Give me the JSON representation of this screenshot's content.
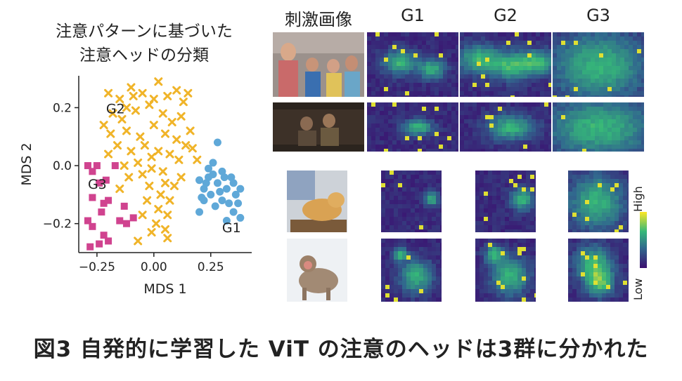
{
  "plot_title_line1": "注意パターンに基づいた",
  "plot_title_line2": "注意ヘッドの分類",
  "column_headers": [
    "刺激画像",
    "G1",
    "G2",
    "G3"
  ],
  "colorbar": {
    "high_label": "High",
    "low_label": "Low"
  },
  "caption": "図3 自発的に学習した ViT の注意のヘッドは3群に分かれた",
  "colors": {
    "G1": "#5fa8d8",
    "G2": "#f0b429",
    "G3": "#d0438f",
    "heat_low": "#3b0f70",
    "heat_high": "#fde725"
  },
  "chart_data": {
    "type": "scatter",
    "xlabel": "MDS 1",
    "ylabel": "MDS 2",
    "xlim": [
      -0.33,
      0.43
    ],
    "ylim": [
      -0.3,
      0.31
    ],
    "xticks": [
      -0.25,
      0.0,
      0.25
    ],
    "yticks": [
      -0.2,
      0.0,
      0.2
    ],
    "xtick_labels": [
      "−0.25",
      "0.00",
      "0.25"
    ],
    "ytick_labels": [
      "−0.2",
      "0.0",
      "0.2"
    ],
    "grid": false,
    "series": [
      {
        "name": "G1",
        "marker": "circle",
        "color": "#5fa8d8",
        "points": [
          [
            0.2,
            -0.05
          ],
          [
            0.22,
            -0.08
          ],
          [
            0.24,
            -0.04
          ],
          [
            0.26,
            -0.03
          ],
          [
            0.28,
            -0.06
          ],
          [
            0.3,
            -0.02
          ],
          [
            0.32,
            -0.08
          ],
          [
            0.34,
            -0.04
          ],
          [
            0.36,
            -0.1
          ],
          [
            0.38,
            -0.08
          ],
          [
            0.3,
            -0.12
          ],
          [
            0.27,
            -0.14
          ],
          [
            0.33,
            -0.13
          ],
          [
            0.35,
            -0.16
          ],
          [
            0.38,
            -0.18
          ],
          [
            0.25,
            -0.1
          ],
          [
            0.22,
            -0.12
          ],
          [
            0.2,
            -0.16
          ],
          [
            0.29,
            -0.09
          ],
          [
            0.31,
            -0.04
          ],
          [
            0.26,
            0.01
          ],
          [
            0.28,
            0.08
          ],
          [
            0.24,
            -0.01
          ],
          [
            0.35,
            -0.06
          ],
          [
            0.37,
            -0.13
          ],
          [
            0.32,
            -0.19
          ],
          [
            0.23,
            -0.06
          ],
          [
            0.21,
            -0.11
          ]
        ]
      },
      {
        "name": "G2",
        "marker": "x",
        "color": "#f0b429",
        "points": [
          [
            -0.2,
            0.25
          ],
          [
            -0.15,
            0.23
          ],
          [
            -0.1,
            0.27
          ],
          [
            -0.05,
            0.25
          ],
          [
            0.02,
            0.29
          ],
          [
            0.06,
            0.24
          ],
          [
            0.1,
            0.26
          ],
          [
            0.13,
            0.22
          ],
          [
            0.15,
            0.25
          ],
          [
            -0.18,
            0.18
          ],
          [
            -0.14,
            0.16
          ],
          [
            -0.08,
            0.19
          ],
          [
            -0.02,
            0.21
          ],
          [
            0.04,
            0.18
          ],
          [
            0.08,
            0.15
          ],
          [
            0.12,
            0.17
          ],
          [
            -0.22,
            0.14
          ],
          [
            -0.19,
            0.11
          ],
          [
            -0.12,
            0.12
          ],
          [
            -0.06,
            0.1
          ],
          [
            0.0,
            0.14
          ],
          [
            0.05,
            0.11
          ],
          [
            0.1,
            0.09
          ],
          [
            0.14,
            0.07
          ],
          [
            -0.16,
            0.07
          ],
          [
            -0.1,
            0.05
          ],
          [
            -0.04,
            0.07
          ],
          [
            0.02,
            0.05
          ],
          [
            0.07,
            0.04
          ],
          [
            0.11,
            0.02
          ],
          [
            0.17,
            0.06
          ],
          [
            0.19,
            0.02
          ],
          [
            -0.13,
            0.0
          ],
          [
            -0.07,
            0.01
          ],
          [
            -0.01,
            -0.01
          ],
          [
            0.04,
            -0.02
          ],
          [
            -0.11,
            -0.04
          ],
          [
            -0.05,
            -0.03
          ],
          [
            -0.02,
            -0.07
          ],
          [
            0.05,
            -0.06
          ],
          [
            0.09,
            -0.07
          ],
          [
            0.03,
            -0.1
          ],
          [
            0.07,
            -0.12
          ],
          [
            -0.03,
            -0.12
          ],
          [
            0.02,
            -0.15
          ],
          [
            0.06,
            -0.17
          ],
          [
            -0.05,
            -0.17
          ],
          [
            0.01,
            -0.2
          ],
          [
            0.05,
            -0.22
          ],
          [
            -0.01,
            -0.23
          ],
          [
            0.06,
            -0.25
          ],
          [
            -0.07,
            -0.26
          ],
          [
            -0.12,
            0.2
          ],
          [
            -0.2,
            0.04
          ],
          [
            0.16,
            0.12
          ],
          [
            -0.09,
            0.24
          ],
          [
            -0.01,
            0.03
          ],
          [
            0.12,
            -0.04
          ],
          [
            -0.15,
            -0.08
          ],
          [
            0.0,
            0.23
          ]
        ]
      },
      {
        "name": "G3",
        "marker": "square",
        "color": "#d0438f",
        "points": [
          [
            -0.29,
            0.0
          ],
          [
            -0.27,
            -0.02
          ],
          [
            -0.25,
            0.0
          ],
          [
            -0.24,
            -0.06
          ],
          [
            -0.21,
            -0.05
          ],
          [
            -0.17,
            0.0
          ],
          [
            -0.27,
            -0.11
          ],
          [
            -0.22,
            -0.13
          ],
          [
            -0.2,
            -0.12
          ],
          [
            -0.13,
            -0.14
          ],
          [
            -0.15,
            -0.19
          ],
          [
            -0.12,
            -0.2
          ],
          [
            -0.09,
            -0.18
          ],
          [
            -0.29,
            -0.19
          ],
          [
            -0.27,
            -0.21
          ],
          [
            -0.22,
            -0.24
          ],
          [
            -0.24,
            -0.27
          ],
          [
            -0.2,
            -0.26
          ],
          [
            -0.28,
            -0.28
          ],
          [
            -0.23,
            -0.16
          ]
        ]
      }
    ],
    "annotations": [
      {
        "text": "G1",
        "x": 0.3,
        "y": -0.23
      },
      {
        "text": "G2",
        "x": -0.21,
        "y": 0.18
      },
      {
        "text": "G3",
        "x": -0.29,
        "y": -0.08
      }
    ]
  }
}
